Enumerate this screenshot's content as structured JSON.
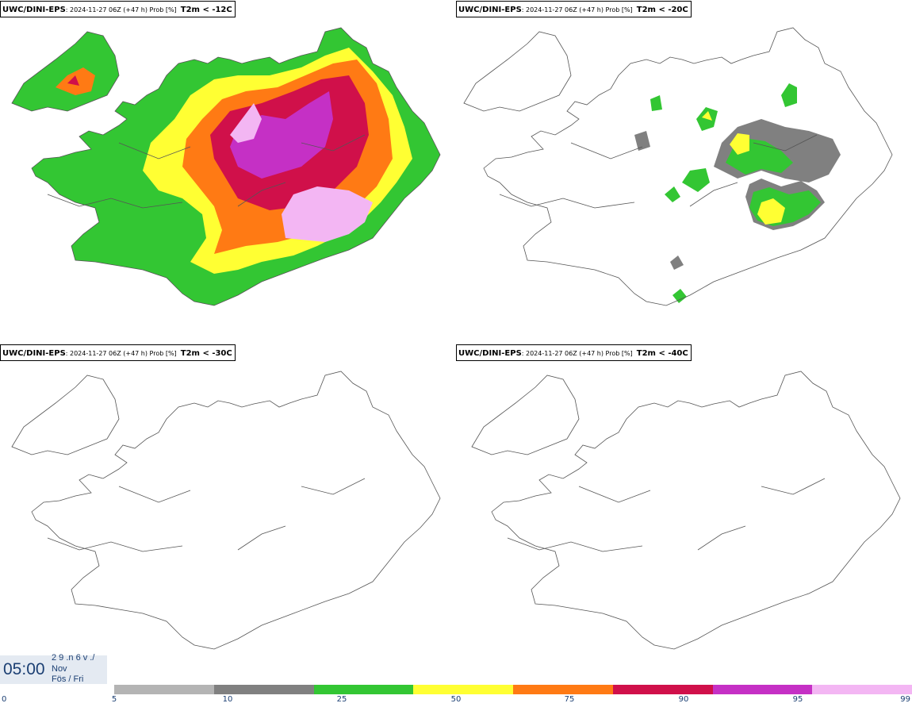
{
  "panels": [
    {
      "model": "UWC/DINI-EPS",
      "meta": ": 2024-11-27 06Z (+47 h) Prob [%]",
      "variable": "T2m < -12C"
    },
    {
      "model": "UWC/DINI-EPS",
      "meta": ": 2024-11-27 06Z (+47 h) Prob [%]",
      "variable": "T2m < -20C"
    },
    {
      "model": "UWC/DINI-EPS",
      "meta": ": 2024-11-27 06Z (+47 h) Prob [%]",
      "variable": "T2m < -30C"
    },
    {
      "model": "UWC/DINI-EPS",
      "meta": ": 2024-11-27 06Z (+47 h) Prob [%]",
      "variable": "T2m < -40C"
    }
  ],
  "clock": {
    "time": "05:00",
    "day_line": "2 9 .n 6 v ./",
    "month": "Nov",
    "weekday": "Fös / Fri"
  },
  "legend": {
    "ticks": [
      "0",
      "5",
      "10",
      "25",
      "50",
      "75",
      "90",
      "95",
      "99"
    ],
    "colors": [
      "#b4b4b4",
      "#808080",
      "#33c633",
      "#ffff33",
      "#ff7a14",
      "#d0104a",
      "#c530c5",
      "#f3b6f3"
    ]
  }
}
